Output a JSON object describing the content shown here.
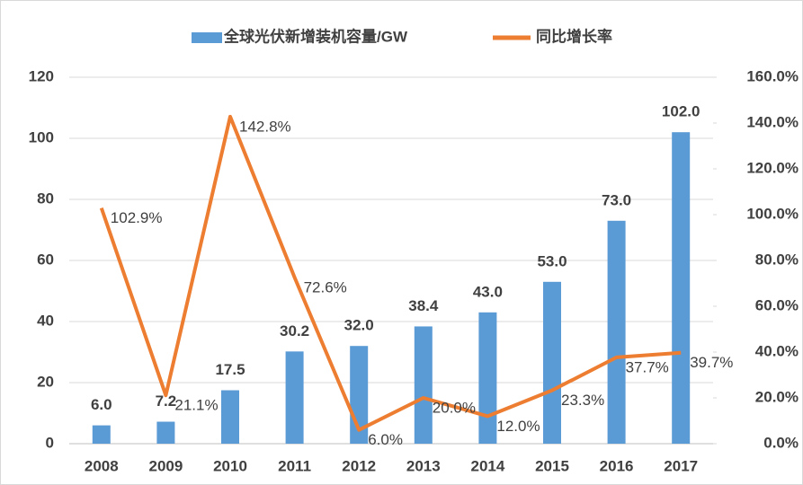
{
  "chart_data": {
    "type": "bar_line",
    "categories": [
      "2008",
      "2009",
      "2010",
      "2011",
      "2012",
      "2013",
      "2014",
      "2015",
      "2016",
      "2017"
    ],
    "series": [
      {
        "name": "全球光伏新增装机容量/GW",
        "type": "bar",
        "color": "#5b9bd5",
        "values": [
          6.0,
          7.2,
          17.5,
          30.2,
          32.0,
          38.4,
          43.0,
          53.0,
          73.0,
          102.0
        ],
        "value_labels": [
          "6.0",
          "7.2",
          "17.5",
          "30.2",
          "32.0",
          "38.4",
          "43.0",
          "53.0",
          "73.0",
          "102.0"
        ]
      },
      {
        "name": "同比增长率",
        "type": "line",
        "color": "#ed7d31",
        "axis": "y2",
        "values": [
          102.9,
          21.1,
          142.8,
          72.6,
          6.0,
          20.0,
          12.0,
          23.3,
          37.7,
          39.7
        ],
        "value_labels": [
          "102.9%",
          "21.1%",
          "142.8%",
          "72.6%",
          "6.0%",
          "20.0%",
          "12.0%",
          "23.3%",
          "37.7%",
          "39.7%"
        ]
      }
    ],
    "ylim": [
      0,
      120
    ],
    "yticks": [
      0,
      20,
      40,
      60,
      80,
      100,
      120
    ],
    "y2lim": [
      0,
      160
    ],
    "y2ticks": [
      {
        "value": 0,
        "label": "0.0%"
      },
      {
        "value": 20,
        "label": "20.0%"
      },
      {
        "value": 40,
        "label": "40.0%"
      },
      {
        "value": 60,
        "label": "60.0%"
      },
      {
        "value": 80,
        "label": "80.0%"
      },
      {
        "value": 100,
        "label": "100.0%"
      },
      {
        "value": 120,
        "label": "120.0%"
      },
      {
        "value": 140,
        "label": "140.0%"
      },
      {
        "value": 160,
        "label": "160.0%"
      }
    ],
    "grid": true,
    "legend": "top"
  }
}
